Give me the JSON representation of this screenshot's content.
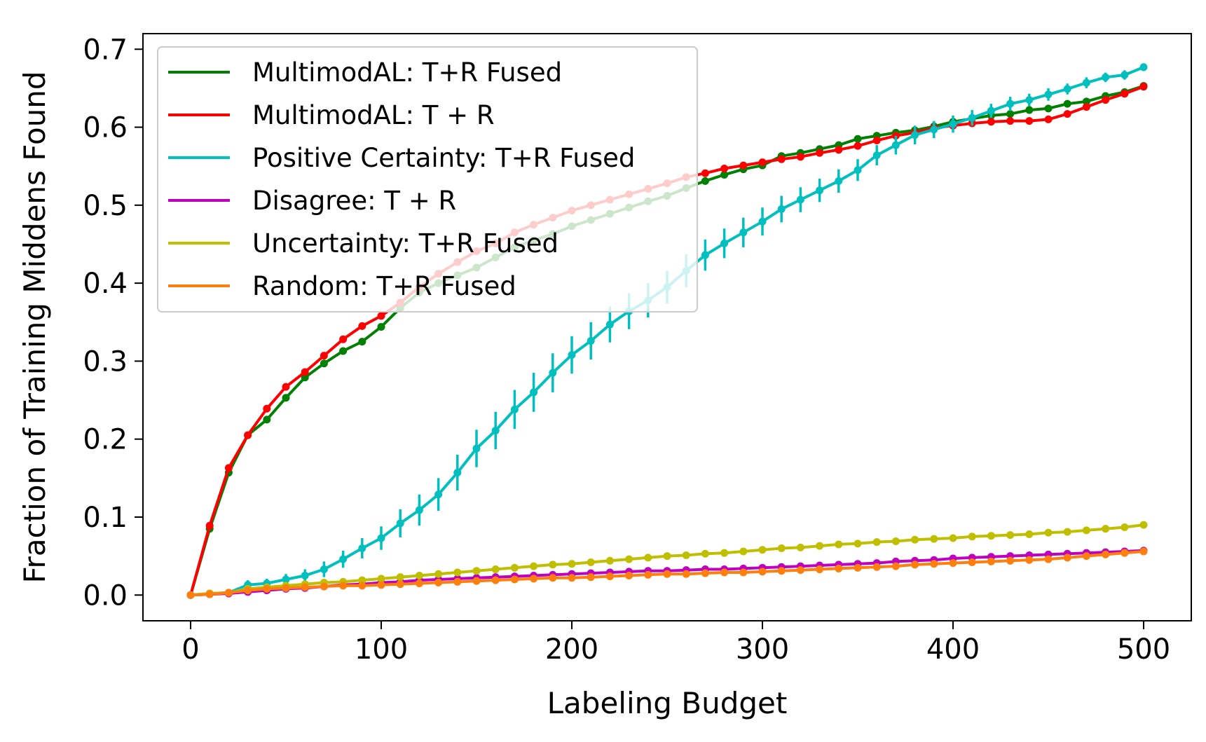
{
  "chart_data": {
    "type": "line",
    "title": "",
    "xlabel": "Labeling Budget",
    "ylabel": "Fraction of Training Middens Found",
    "xlim": [
      -25,
      525
    ],
    "ylim": [
      -0.033,
      0.72
    ],
    "xticks": [
      0,
      100,
      200,
      300,
      400,
      500
    ],
    "xtick_labels": [
      "0",
      "100",
      "200",
      "300",
      "400",
      "500"
    ],
    "yticks": [
      0.0,
      0.1,
      0.2,
      0.3,
      0.4,
      0.5,
      0.6,
      0.7
    ],
    "ytick_labels": [
      "0.0",
      "0.1",
      "0.2",
      "0.3",
      "0.4",
      "0.5",
      "0.6",
      "0.7"
    ],
    "grid": false,
    "legend_position": "upper-left",
    "x": [
      0,
      10,
      20,
      30,
      40,
      50,
      60,
      70,
      80,
      90,
      100,
      110,
      120,
      130,
      140,
      150,
      160,
      170,
      180,
      190,
      200,
      210,
      220,
      230,
      240,
      250,
      260,
      270,
      280,
      290,
      300,
      310,
      320,
      330,
      340,
      350,
      360,
      370,
      380,
      390,
      400,
      410,
      420,
      430,
      440,
      450,
      460,
      470,
      480,
      490,
      500
    ],
    "series": [
      {
        "name": "MultimodAL: T+R Fused",
        "color": "#008000",
        "values": [
          0.0,
          0.085,
          0.157,
          0.205,
          0.225,
          0.253,
          0.279,
          0.297,
          0.313,
          0.325,
          0.344,
          0.368,
          0.388,
          0.4,
          0.41,
          0.42,
          0.433,
          0.446,
          0.455,
          0.463,
          0.473,
          0.481,
          0.489,
          0.497,
          0.505,
          0.512,
          0.522,
          0.531,
          0.539,
          0.546,
          0.551,
          0.563,
          0.567,
          0.572,
          0.577,
          0.585,
          0.589,
          0.593,
          0.596,
          0.601,
          0.607,
          0.611,
          0.615,
          0.617,
          0.622,
          0.624,
          0.63,
          0.633,
          0.64,
          0.645,
          0.653
        ],
        "error": []
      },
      {
        "name": "MultimodAL: T + R",
        "color": "#ff0000",
        "values": [
          0.0,
          0.089,
          0.163,
          0.205,
          0.239,
          0.267,
          0.286,
          0.307,
          0.328,
          0.345,
          0.358,
          0.375,
          0.395,
          0.412,
          0.427,
          0.441,
          0.451,
          0.465,
          0.475,
          0.484,
          0.493,
          0.5,
          0.507,
          0.514,
          0.521,
          0.528,
          0.536,
          0.541,
          0.547,
          0.551,
          0.555,
          0.559,
          0.562,
          0.567,
          0.571,
          0.576,
          0.583,
          0.589,
          0.593,
          0.599,
          0.602,
          0.605,
          0.607,
          0.608,
          0.608,
          0.61,
          0.617,
          0.626,
          0.635,
          0.643,
          0.652
        ],
        "error": []
      },
      {
        "name": "Positive Certainty: T+R Fused",
        "color": "#00bfbf",
        "values": [
          0.0,
          0.002,
          0.003,
          0.013,
          0.015,
          0.02,
          0.025,
          0.033,
          0.046,
          0.06,
          0.073,
          0.092,
          0.109,
          0.129,
          0.157,
          0.188,
          0.211,
          0.238,
          0.26,
          0.285,
          0.308,
          0.326,
          0.347,
          0.364,
          0.378,
          0.395,
          0.416,
          0.436,
          0.451,
          0.465,
          0.479,
          0.495,
          0.507,
          0.519,
          0.531,
          0.545,
          0.564,
          0.577,
          0.59,
          0.597,
          0.604,
          0.612,
          0.621,
          0.63,
          0.635,
          0.642,
          0.649,
          0.657,
          0.664,
          0.667,
          0.677
        ],
        "error": [
          0.0,
          0.002,
          0.003,
          0.006,
          0.006,
          0.007,
          0.008,
          0.01,
          0.011,
          0.013,
          0.015,
          0.018,
          0.02,
          0.021,
          0.023,
          0.024,
          0.024,
          0.025,
          0.025,
          0.025,
          0.024,
          0.024,
          0.023,
          0.023,
          0.022,
          0.021,
          0.021,
          0.02,
          0.019,
          0.019,
          0.018,
          0.017,
          0.016,
          0.015,
          0.015,
          0.014,
          0.013,
          0.012,
          0.012,
          0.011,
          0.011,
          0.01,
          0.009,
          0.009,
          0.008,
          0.008,
          0.007,
          0.007,
          0.006,
          0.006,
          0.005
        ]
      },
      {
        "name": "Disagree: T + R",
        "color": "#bf00bf",
        "values": [
          0.0,
          0.001,
          0.002,
          0.004,
          0.006,
          0.008,
          0.009,
          0.011,
          0.013,
          0.014,
          0.016,
          0.017,
          0.019,
          0.02,
          0.021,
          0.022,
          0.023,
          0.024,
          0.025,
          0.026,
          0.027,
          0.028,
          0.029,
          0.03,
          0.031,
          0.031,
          0.032,
          0.033,
          0.033,
          0.034,
          0.035,
          0.036,
          0.037,
          0.038,
          0.039,
          0.04,
          0.041,
          0.043,
          0.044,
          0.045,
          0.047,
          0.048,
          0.049,
          0.05,
          0.051,
          0.052,
          0.053,
          0.054,
          0.055,
          0.056,
          0.057
        ],
        "error": []
      },
      {
        "name": "Uncertainty: T+R Fused",
        "color": "#bfbf00",
        "values": [
          0.0,
          0.002,
          0.003,
          0.008,
          0.01,
          0.012,
          0.014,
          0.016,
          0.017,
          0.019,
          0.021,
          0.023,
          0.025,
          0.027,
          0.029,
          0.031,
          0.033,
          0.035,
          0.037,
          0.039,
          0.04,
          0.042,
          0.044,
          0.046,
          0.048,
          0.05,
          0.051,
          0.053,
          0.054,
          0.056,
          0.058,
          0.06,
          0.061,
          0.063,
          0.065,
          0.066,
          0.068,
          0.069,
          0.071,
          0.072,
          0.073,
          0.075,
          0.076,
          0.077,
          0.078,
          0.08,
          0.081,
          0.083,
          0.085,
          0.087,
          0.09
        ],
        "error": []
      },
      {
        "name": "Random: T+R Fused",
        "color": "#ff7f0e",
        "values": [
          0.0,
          0.001,
          0.003,
          0.006,
          0.008,
          0.009,
          0.01,
          0.011,
          0.012,
          0.012,
          0.013,
          0.014,
          0.015,
          0.016,
          0.017,
          0.018,
          0.019,
          0.02,
          0.021,
          0.022,
          0.022,
          0.023,
          0.024,
          0.025,
          0.026,
          0.027,
          0.027,
          0.028,
          0.029,
          0.029,
          0.03,
          0.031,
          0.032,
          0.033,
          0.034,
          0.035,
          0.036,
          0.037,
          0.039,
          0.04,
          0.041,
          0.042,
          0.043,
          0.044,
          0.045,
          0.046,
          0.048,
          0.05,
          0.052,
          0.054,
          0.056
        ],
        "error": []
      }
    ]
  }
}
